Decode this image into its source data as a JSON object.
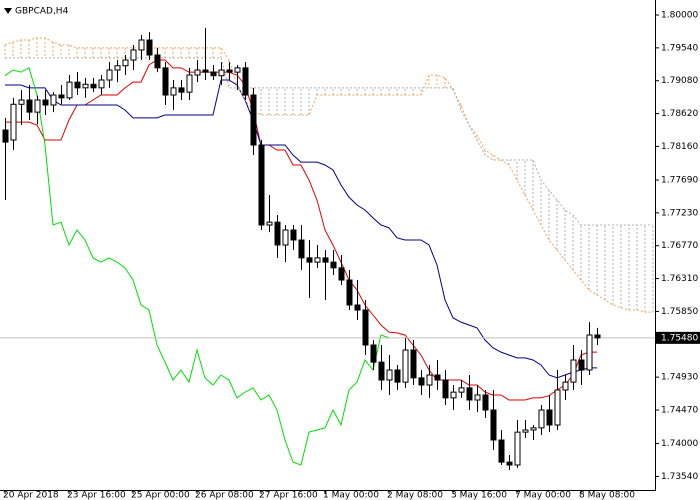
{
  "chart_data": {
    "type": "candlestick",
    "title": "GBPCAD,H4",
    "categories": [
      "20 Apr 2018",
      null,
      null,
      null,
      null,
      null,
      null,
      null,
      "23 Apr 16:00",
      null,
      null,
      null,
      null,
      null,
      null,
      null,
      "25 Apr 00:00",
      null,
      null,
      null,
      null,
      null,
      null,
      null,
      "26 Apr 08:00",
      null,
      null,
      null,
      null,
      null,
      null,
      null,
      "27 Apr 16:00",
      null,
      null,
      null,
      null,
      null,
      null,
      null,
      "1 May 00:00",
      null,
      null,
      null,
      null,
      null,
      null,
      null,
      "2 May 08:00",
      null,
      null,
      null,
      null,
      null,
      null,
      null,
      "3 May 16:00",
      null,
      null,
      null,
      null,
      null,
      null,
      null,
      "7 May 00:00",
      null,
      null,
      null,
      null,
      null,
      null,
      null,
      "8 May 08:00",
      null,
      null,
      null,
      null,
      null,
      null,
      null,
      null,
      null
    ],
    "open": [
      1.7839,
      1.7825,
      1.7875,
      1.7881,
      1.7864,
      1.7881,
      1.7874,
      1.7888,
      1.7884,
      1.7906,
      1.7898,
      1.7903,
      1.7898,
      1.7909,
      1.7923,
      1.7929,
      1.7937,
      1.7951,
      1.7965,
      1.7944,
      1.7926,
      1.7888,
      1.7898,
      1.7892,
      1.7916,
      1.7923,
      1.792,
      1.7915,
      1.7923,
      1.792,
      1.7926,
      1.7888,
      1.7818,
      1.7706,
      1.771,
      1.7678,
      1.7699,
      1.7685,
      1.766,
      1.7654,
      1.766,
      1.7654,
      1.7646,
      1.7629,
      1.7594,
      1.7587,
      1.7538,
      1.7514,
      1.7489,
      1.7503,
      1.7486,
      1.7531,
      1.7492,
      1.7482,
      1.7496,
      1.7489,
      1.7464,
      1.7472,
      1.7478,
      1.7461,
      1.7468,
      1.7447,
      1.7405,
      1.7374,
      1.737,
      1.7416,
      1.7419,
      1.7422,
      1.7447,
      1.7426,
      1.7475,
      1.7486,
      1.7517,
      1.7503,
      1.7552,
      null,
      null,
      null,
      null,
      null,
      null,
      null
    ],
    "high": [
      1.7856,
      1.7884,
      1.7895,
      1.7902,
      1.7887,
      1.7895,
      1.7892,
      1.7902,
      1.7916,
      1.792,
      1.7912,
      1.7912,
      1.7916,
      1.7934,
      1.7937,
      1.7944,
      1.7958,
      1.7972,
      1.7976,
      1.7954,
      1.7934,
      1.7909,
      1.7909,
      1.7926,
      1.7937,
      1.7982,
      1.793,
      1.7934,
      1.7934,
      1.793,
      1.7934,
      1.7898,
      1.7825,
      1.7748,
      1.772,
      1.7706,
      1.7706,
      1.7706,
      1.7685,
      1.7678,
      1.7671,
      1.7671,
      1.7664,
      1.7643,
      1.7629,
      1.7601,
      1.7545,
      1.7538,
      1.7524,
      1.751,
      1.7548,
      1.7545,
      1.7503,
      1.751,
      1.7517,
      1.7503,
      1.7482,
      1.7489,
      1.7496,
      1.7482,
      1.7475,
      1.7475,
      1.7419,
      1.7384,
      1.7433,
      1.7433,
      1.7426,
      1.7454,
      1.7468,
      1.7503,
      1.7496,
      1.7538,
      1.7531,
      1.757,
      1.7562,
      null,
      null,
      null,
      null,
      null,
      null,
      null
    ],
    "low": [
      1.7741,
      1.7811,
      1.7846,
      1.7853,
      1.7847,
      1.786,
      1.7864,
      1.7875,
      1.7881,
      1.7888,
      1.7884,
      1.7892,
      1.7888,
      1.7898,
      1.7906,
      1.7916,
      1.7923,
      1.7937,
      1.7937,
      1.792,
      1.7874,
      1.7867,
      1.7881,
      1.7881,
      1.7906,
      1.7909,
      1.7909,
      1.7902,
      1.7909,
      1.7895,
      1.7881,
      1.7804,
      1.7699,
      1.7696,
      1.766,
      1.7654,
      1.7671,
      1.7643,
      1.7604,
      1.7646,
      1.7601,
      1.7636,
      1.7622,
      1.7587,
      1.7573,
      1.7524,
      1.7503,
      1.7475,
      1.7468,
      1.7475,
      1.7478,
      1.7482,
      1.7468,
      1.7464,
      1.7475,
      1.7454,
      1.7447,
      1.7464,
      1.7447,
      1.7444,
      1.7436,
      1.7391,
      1.737,
      1.7363,
      1.7366,
      1.7408,
      1.7405,
      1.7412,
      1.7416,
      1.7419,
      1.7461,
      1.7475,
      1.7482,
      1.7496,
      1.7538,
      null,
      null,
      null,
      null,
      null,
      null,
      null
    ],
    "close": [
      1.7822,
      1.7875,
      1.7881,
      1.7864,
      1.7881,
      1.7874,
      1.7888,
      1.7884,
      1.7906,
      1.7898,
      1.7903,
      1.7898,
      1.7909,
      1.7923,
      1.7929,
      1.7937,
      1.7951,
      1.7965,
      1.7944,
      1.7926,
      1.7888,
      1.7898,
      1.7892,
      1.7916,
      1.7923,
      1.792,
      1.7915,
      1.7923,
      1.792,
      1.7926,
      1.7888,
      1.7818,
      1.7706,
      1.771,
      1.7678,
      1.7699,
      1.7685,
      1.766,
      1.7654,
      1.766,
      1.7654,
      1.7646,
      1.7629,
      1.7594,
      1.7587,
      1.7538,
      1.7514,
      1.7489,
      1.7503,
      1.7486,
      1.7531,
      1.7492,
      1.7482,
      1.7496,
      1.7489,
      1.7464,
      1.7472,
      1.7478,
      1.7461,
      1.7468,
      1.7447,
      1.7405,
      1.7374,
      1.737,
      1.7416,
      1.7419,
      1.7422,
      1.7447,
      1.7426,
      1.7475,
      1.7486,
      1.7517,
      1.7503,
      1.7552,
      1.7548,
      null,
      null,
      null,
      null,
      null,
      null,
      null
    ],
    "up_color": "#ffffff",
    "down_color": "#000000",
    "series": [
      {
        "color": "#e00000",
        "line_style": "solid",
        "values": [
          1.785,
          1.785,
          1.785,
          1.785,
          1.7846,
          1.7825,
          1.7825,
          1.7825,
          1.7853,
          1.7874,
          1.7874,
          1.7881,
          1.7888,
          1.7888,
          1.7888,
          1.7898,
          1.7906,
          1.7906,
          1.793,
          1.7937,
          1.7937,
          1.7926,
          1.7926,
          1.792,
          1.792,
          1.792,
          1.792,
          1.792,
          1.792,
          1.7916,
          1.7902,
          1.7867,
          1.7818,
          1.7818,
          1.7811,
          1.7811,
          1.779,
          1.779,
          1.7769,
          1.7741,
          1.7699,
          1.7678,
          1.7654,
          1.7629,
          1.7615,
          1.7594,
          1.758,
          1.7566,
          1.7556,
          1.7555,
          1.7552,
          1.7538,
          1.7524,
          1.7503,
          1.7489,
          1.7489,
          1.7489,
          1.7489,
          1.7482,
          1.7482,
          1.7472,
          1.7468,
          1.7468,
          1.7461,
          1.7461,
          1.7461,
          1.7464,
          1.7464,
          1.7467,
          1.7475,
          1.7482,
          1.7496,
          1.7524,
          1.7528,
          1.7528,
          null,
          null,
          null,
          null,
          null,
          null,
          null
        ]
      },
      {
        "color": "#00008b",
        "line_style": "solid",
        "values": [
          1.7902,
          1.7902,
          1.7902,
          1.7898,
          1.7898,
          1.7898,
          1.7881,
          1.7874,
          1.7874,
          1.7874,
          1.7874,
          1.7874,
          1.7874,
          1.7874,
          1.7874,
          1.7867,
          1.7856,
          1.7856,
          1.7856,
          1.7856,
          1.786,
          1.786,
          1.786,
          1.786,
          1.786,
          1.786,
          1.786,
          1.7909,
          1.7909,
          1.7902,
          1.7881,
          1.7853,
          1.7818,
          1.7818,
          1.7818,
          1.7818,
          1.7804,
          1.7794,
          1.7794,
          1.7794,
          1.779,
          1.7783,
          1.7762,
          1.7745,
          1.7734,
          1.7727,
          1.7716,
          1.7706,
          1.7702,
          1.7688,
          1.7685,
          1.7685,
          1.7685,
          1.7678,
          1.765,
          1.7601,
          1.7576,
          1.757,
          1.7566,
          1.7562,
          1.7545,
          1.7534,
          1.7528,
          1.7524,
          1.752,
          1.752,
          1.7517,
          1.751,
          1.7496,
          1.7492,
          1.7496,
          1.75,
          1.7503,
          1.7506,
          1.7506,
          null,
          null,
          null,
          null,
          null,
          null,
          null
        ]
      },
      {
        "color": "#00e000",
        "line_style": "solid",
        "values": [
          1.7915,
          1.7923,
          1.792,
          1.7926,
          1.7888,
          1.7818,
          1.7706,
          1.771,
          1.7678,
          1.7699,
          1.7685,
          1.766,
          1.7654,
          1.766,
          1.7654,
          1.7646,
          1.7629,
          1.7594,
          1.7587,
          1.7538,
          1.7514,
          1.7489,
          1.7503,
          1.7486,
          1.7531,
          1.7492,
          1.7482,
          1.7496,
          1.7489,
          1.7464,
          1.7472,
          1.7478,
          1.7461,
          1.7468,
          1.7447,
          1.7405,
          1.7374,
          1.737,
          1.7416,
          1.7419,
          1.7422,
          1.7447,
          1.7426,
          1.7475,
          1.7486,
          1.7517,
          1.7503,
          1.7552,
          1.7548,
          null,
          null,
          null,
          null,
          null,
          null,
          null,
          null,
          null,
          null,
          null,
          null,
          null,
          null,
          null,
          null,
          null,
          null,
          null,
          null,
          null,
          null,
          null,
          null,
          null,
          null,
          null,
          null,
          null,
          null,
          null,
          null,
          null
        ]
      },
      {
        "color": "#f4a460",
        "line_style": "dotted",
        "values": [
          1.7958,
          1.7962,
          1.7965,
          1.7965,
          1.7968,
          1.7968,
          1.7962,
          1.7958,
          1.7958,
          1.7954,
          1.7954,
          1.7954,
          1.7954,
          1.7954,
          1.7954,
          1.7954,
          1.7954,
          1.7954,
          1.7954,
          1.7954,
          1.7954,
          1.7954,
          1.7954,
          1.7954,
          1.7954,
          1.7954,
          1.7954,
          1.7954,
          1.7937,
          1.7902,
          1.7881,
          1.7867,
          1.786,
          1.786,
          1.786,
          1.786,
          1.786,
          1.786,
          1.786,
          1.7888,
          1.7888,
          1.7888,
          1.7888,
          1.7888,
          1.7888,
          1.7888,
          1.7888,
          1.7888,
          1.7888,
          1.7888,
          1.7888,
          1.7888,
          1.7888,
          1.7916,
          1.7916,
          1.7912,
          1.7895,
          1.7874,
          1.7846,
          1.7832,
          1.7811,
          1.7804,
          1.7797,
          1.779,
          1.7769,
          1.7748,
          1.7727,
          1.7706,
          1.7685,
          1.7671,
          1.7657,
          1.7643,
          1.7629,
          1.7615,
          1.7608,
          1.7601,
          1.7594,
          1.759,
          1.7587,
          1.7587,
          1.7584,
          1.7584
        ]
      },
      {
        "color": "#b0b0b0",
        "line_style": "dotted",
        "values": [
          1.794,
          1.794,
          1.794,
          1.794,
          1.794,
          1.794,
          1.794,
          1.794,
          1.794,
          1.794,
          1.794,
          1.794,
          1.794,
          1.794,
          1.794,
          1.794,
          1.794,
          1.794,
          1.794,
          1.794,
          1.794,
          1.794,
          1.794,
          1.794,
          1.794,
          1.794,
          1.794,
          1.794,
          1.7898,
          1.7898,
          1.7898,
          1.7898,
          1.7898,
          1.7898,
          1.7898,
          1.7898,
          1.7898,
          1.7898,
          1.7898,
          1.7898,
          1.7898,
          1.7898,
          1.7898,
          1.7898,
          1.7898,
          1.7898,
          1.7898,
          1.7898,
          1.7898,
          1.7898,
          1.7898,
          1.7898,
          1.7898,
          1.7898,
          1.7898,
          1.7898,
          1.7898,
          1.7867,
          1.7846,
          1.7825,
          1.7804,
          1.7797,
          1.7797,
          1.7797,
          1.7797,
          1.7797,
          1.7797,
          1.7769,
          1.7755,
          1.7741,
          1.7727,
          1.772,
          1.7706,
          1.7706,
          1.7706,
          1.7706,
          1.7706,
          1.7706,
          1.7706,
          1.7706,
          1.7706,
          1.7706
        ]
      }
    ],
    "ylim": [
      1.7335,
      1.8014
    ],
    "yticks": [
      {
        "value": 1.8,
        "label": "1.80000"
      },
      {
        "value": 1.7954,
        "label": "1.79540"
      },
      {
        "value": 1.7908,
        "label": "1.79080"
      },
      {
        "value": 1.7862,
        "label": "1.78620"
      },
      {
        "value": 1.7816,
        "label": "1.78160"
      },
      {
        "value": 1.7769,
        "label": "1.77690"
      },
      {
        "value": 1.7723,
        "label": "1.77230"
      },
      {
        "value": 1.7677,
        "label": "1.76770"
      },
      {
        "value": 1.7631,
        "label": "1.76310"
      },
      {
        "value": 1.7585,
        "label": "1.75850"
      },
      {
        "value": 1.7493,
        "label": "1.74930"
      },
      {
        "value": 1.7447,
        "label": "1.74470"
      },
      {
        "value": 1.74,
        "label": "1.74000"
      },
      {
        "value": 1.7354,
        "label": "1.73540"
      }
    ],
    "price_line": {
      "value": 1.7548,
      "label": "1.75480"
    }
  }
}
